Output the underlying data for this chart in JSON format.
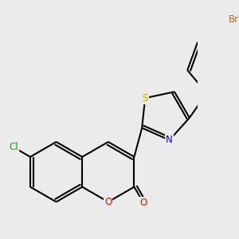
{
  "bg_color": "#ebebeb",
  "bond_color": "#000000",
  "bond_width": 1.5,
  "atom_colors": {
    "O": "#ff0000",
    "N": "#0000ff",
    "S": "#ccaa00",
    "Cl": "#00aa00",
    "Br": "#cc6600"
  },
  "font_size": 8.5
}
